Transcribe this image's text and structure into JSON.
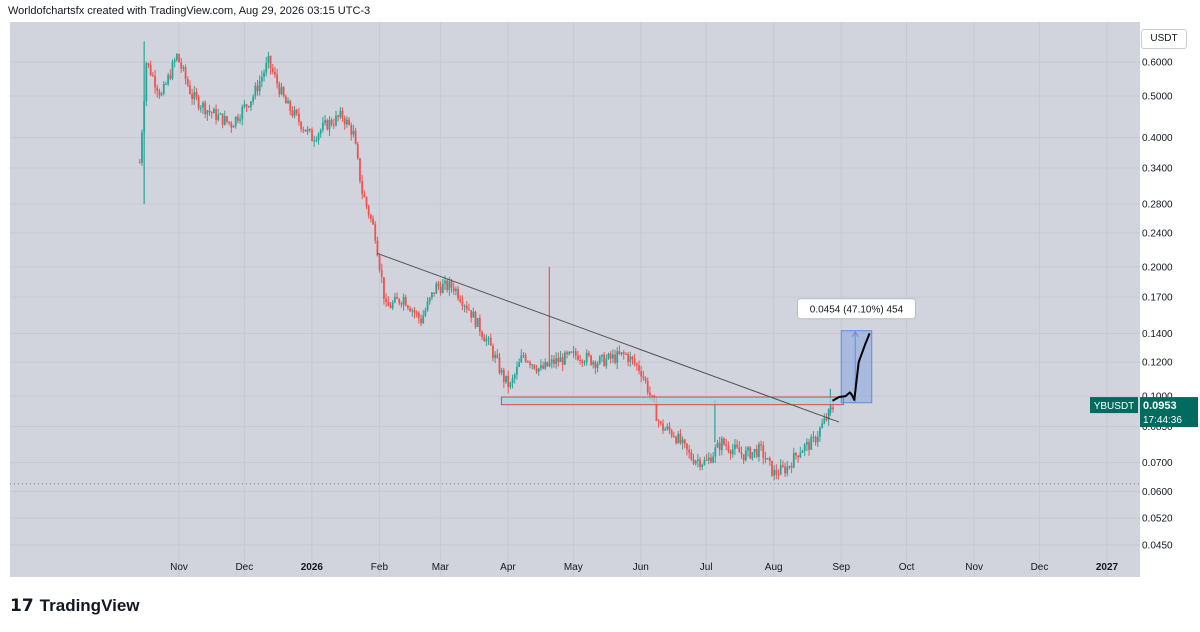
{
  "header": {
    "text": "Worldofchartsfx created with TradingView.com, Aug 29, 2026 03:15 UTC-3"
  },
  "currency_button": "USDT",
  "footer": {
    "logo_icon": "tradingview-logo-icon",
    "brand": "TradingView"
  },
  "colors": {
    "background": "#d1d4dc",
    "up": "#26a69a",
    "down": "#ef5350",
    "measure": "#5b8de6"
  },
  "chart_data": {
    "type": "candlestick",
    "symbol": "YBUSDT",
    "last_price_label": "0.0953",
    "countdown_label": "17:44:36",
    "y_scale": "log",
    "ylim": [
      0.041,
      0.68
    ],
    "y_ticks": [
      "0.6000",
      "0.5000",
      "0.4000",
      "0.3400",
      "0.2800",
      "0.2400",
      "0.2000",
      "0.1700",
      "0.1400",
      "0.1200",
      "0.1000",
      "0.0850",
      "0.0700",
      "0.0600",
      "0.0520",
      "0.0450"
    ],
    "x_ticks": [
      "Nov",
      "Dec",
      "2026",
      "Feb",
      "Mar",
      "Apr",
      "May",
      "Jun",
      "Jul",
      "Aug",
      "Sep",
      "Oct",
      "Nov",
      "Dec",
      "2027"
    ],
    "series": [
      {
        "name": "YBUSDT",
        "trend": [
          [
            "2025-10-14",
            0.35
          ],
          [
            "2025-10-17",
            0.6
          ],
          [
            "2025-10-24",
            0.5
          ],
          [
            "2025-10-31",
            0.62
          ],
          [
            "2025-11-07",
            0.5
          ],
          [
            "2025-11-15",
            0.46
          ],
          [
            "2025-11-25",
            0.43
          ],
          [
            "2025-12-05",
            0.5
          ],
          [
            "2025-12-12",
            0.6
          ],
          [
            "2025-12-20",
            0.48
          ],
          [
            "2026-01-01",
            0.4
          ],
          [
            "2026-01-08",
            0.43
          ],
          [
            "2026-01-15",
            0.45
          ],
          [
            "2026-01-20",
            0.41
          ],
          [
            "2026-01-24",
            0.3
          ],
          [
            "2026-01-30",
            0.24
          ],
          [
            "2026-02-04",
            0.16
          ],
          [
            "2026-02-12",
            0.17
          ],
          [
            "2026-02-20",
            0.15
          ],
          [
            "2026-02-27",
            0.18
          ],
          [
            "2026-03-07",
            0.18
          ],
          [
            "2026-03-14",
            0.16
          ],
          [
            "2026-03-24",
            0.13
          ],
          [
            "2026-03-30",
            0.11
          ],
          [
            "2026-04-02",
            0.105
          ],
          [
            "2026-04-08",
            0.125
          ],
          [
            "2026-04-16",
            0.115
          ],
          [
            "2026-04-22",
            0.12
          ],
          [
            "2026-05-03",
            0.125
          ],
          [
            "2026-05-12",
            0.12
          ],
          [
            "2026-05-25",
            0.125
          ],
          [
            "2026-06-01",
            0.115
          ],
          [
            "2026-06-04",
            0.105
          ],
          [
            "2026-06-10",
            0.085
          ],
          [
            "2026-06-16",
            0.082
          ],
          [
            "2026-06-24",
            0.072
          ],
          [
            "2026-07-01",
            0.07
          ],
          [
            "2026-07-08",
            0.078
          ],
          [
            "2026-07-18",
            0.073
          ],
          [
            "2026-07-26",
            0.075
          ],
          [
            "2026-08-01",
            0.066
          ],
          [
            "2026-08-07",
            0.068
          ],
          [
            "2026-08-13",
            0.075
          ],
          [
            "2026-08-19",
            0.078
          ],
          [
            "2026-08-23",
            0.085
          ],
          [
            "2026-08-27",
            0.092
          ],
          [
            "2026-08-29",
            0.0953
          ]
        ]
      }
    ],
    "annotations": {
      "measure_label": "0.0454 (47.10%) 454",
      "downtrend_line": [
        [
          "2026-01-31",
          0.215
        ],
        [
          "2026-08-31",
          0.087
        ]
      ],
      "support_zone": [
        0.0955,
        0.0995
      ],
      "dotted_low_level": 0.0625
    }
  }
}
